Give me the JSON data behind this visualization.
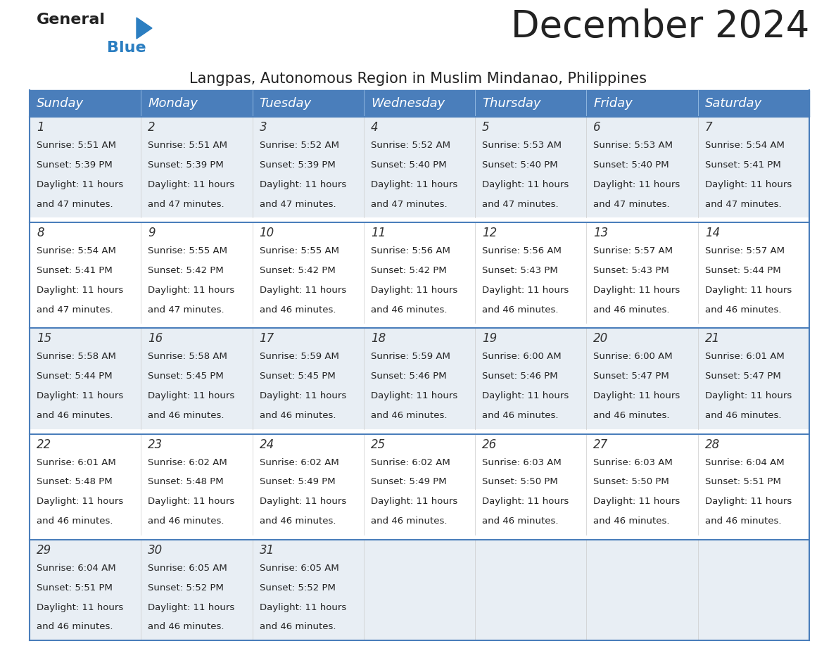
{
  "title": "December 2024",
  "subtitle": "Langpas, Autonomous Region in Muslim Mindanao, Philippines",
  "header_bg_color": "#4A7EBB",
  "header_text_color": "#FFFFFF",
  "row_bg_light": "#E8EEF4",
  "row_bg_white": "#FFFFFF",
  "border_color": "#4A7EBB",
  "cell_border_color": "#AAAAAA",
  "days_of_week": [
    "Sunday",
    "Monday",
    "Tuesday",
    "Wednesday",
    "Thursday",
    "Friday",
    "Saturday"
  ],
  "title_fontsize": 38,
  "subtitle_fontsize": 15,
  "header_fontsize": 13,
  "day_num_fontsize": 12,
  "cell_fontsize": 9.5,
  "calendar": [
    [
      {
        "day": "1",
        "sunrise": "5:51 AM",
        "sunset": "5:39 PM",
        "daylight_h": "11",
        "daylight_m": "47"
      },
      {
        "day": "2",
        "sunrise": "5:51 AM",
        "sunset": "5:39 PM",
        "daylight_h": "11",
        "daylight_m": "47"
      },
      {
        "day": "3",
        "sunrise": "5:52 AM",
        "sunset": "5:39 PM",
        "daylight_h": "11",
        "daylight_m": "47"
      },
      {
        "day": "4",
        "sunrise": "5:52 AM",
        "sunset": "5:40 PM",
        "daylight_h": "11",
        "daylight_m": "47"
      },
      {
        "day": "5",
        "sunrise": "5:53 AM",
        "sunset": "5:40 PM",
        "daylight_h": "11",
        "daylight_m": "47"
      },
      {
        "day": "6",
        "sunrise": "5:53 AM",
        "sunset": "5:40 PM",
        "daylight_h": "11",
        "daylight_m": "47"
      },
      {
        "day": "7",
        "sunrise": "5:54 AM",
        "sunset": "5:41 PM",
        "daylight_h": "11",
        "daylight_m": "47"
      }
    ],
    [
      {
        "day": "8",
        "sunrise": "5:54 AM",
        "sunset": "5:41 PM",
        "daylight_h": "11",
        "daylight_m": "47"
      },
      {
        "day": "9",
        "sunrise": "5:55 AM",
        "sunset": "5:42 PM",
        "daylight_h": "11",
        "daylight_m": "47"
      },
      {
        "day": "10",
        "sunrise": "5:55 AM",
        "sunset": "5:42 PM",
        "daylight_h": "11",
        "daylight_m": "46"
      },
      {
        "day": "11",
        "sunrise": "5:56 AM",
        "sunset": "5:42 PM",
        "daylight_h": "11",
        "daylight_m": "46"
      },
      {
        "day": "12",
        "sunrise": "5:56 AM",
        "sunset": "5:43 PM",
        "daylight_h": "11",
        "daylight_m": "46"
      },
      {
        "day": "13",
        "sunrise": "5:57 AM",
        "sunset": "5:43 PM",
        "daylight_h": "11",
        "daylight_m": "46"
      },
      {
        "day": "14",
        "sunrise": "5:57 AM",
        "sunset": "5:44 PM",
        "daylight_h": "11",
        "daylight_m": "46"
      }
    ],
    [
      {
        "day": "15",
        "sunrise": "5:58 AM",
        "sunset": "5:44 PM",
        "daylight_h": "11",
        "daylight_m": "46"
      },
      {
        "day": "16",
        "sunrise": "5:58 AM",
        "sunset": "5:45 PM",
        "daylight_h": "11",
        "daylight_m": "46"
      },
      {
        "day": "17",
        "sunrise": "5:59 AM",
        "sunset": "5:45 PM",
        "daylight_h": "11",
        "daylight_m": "46"
      },
      {
        "day": "18",
        "sunrise": "5:59 AM",
        "sunset": "5:46 PM",
        "daylight_h": "11",
        "daylight_m": "46"
      },
      {
        "day": "19",
        "sunrise": "6:00 AM",
        "sunset": "5:46 PM",
        "daylight_h": "11",
        "daylight_m": "46"
      },
      {
        "day": "20",
        "sunrise": "6:00 AM",
        "sunset": "5:47 PM",
        "daylight_h": "11",
        "daylight_m": "46"
      },
      {
        "day": "21",
        "sunrise": "6:01 AM",
        "sunset": "5:47 PM",
        "daylight_h": "11",
        "daylight_m": "46"
      }
    ],
    [
      {
        "day": "22",
        "sunrise": "6:01 AM",
        "sunset": "5:48 PM",
        "daylight_h": "11",
        "daylight_m": "46"
      },
      {
        "day": "23",
        "sunrise": "6:02 AM",
        "sunset": "5:48 PM",
        "daylight_h": "11",
        "daylight_m": "46"
      },
      {
        "day": "24",
        "sunrise": "6:02 AM",
        "sunset": "5:49 PM",
        "daylight_h": "11",
        "daylight_m": "46"
      },
      {
        "day": "25",
        "sunrise": "6:02 AM",
        "sunset": "5:49 PM",
        "daylight_h": "11",
        "daylight_m": "46"
      },
      {
        "day": "26",
        "sunrise": "6:03 AM",
        "sunset": "5:50 PM",
        "daylight_h": "11",
        "daylight_m": "46"
      },
      {
        "day": "27",
        "sunrise": "6:03 AM",
        "sunset": "5:50 PM",
        "daylight_h": "11",
        "daylight_m": "46"
      },
      {
        "day": "28",
        "sunrise": "6:04 AM",
        "sunset": "5:51 PM",
        "daylight_h": "11",
        "daylight_m": "46"
      }
    ],
    [
      {
        "day": "29",
        "sunrise": "6:04 AM",
        "sunset": "5:51 PM",
        "daylight_h": "11",
        "daylight_m": "46"
      },
      {
        "day": "30",
        "sunrise": "6:05 AM",
        "sunset": "5:52 PM",
        "daylight_h": "11",
        "daylight_m": "46"
      },
      {
        "day": "31",
        "sunrise": "6:05 AM",
        "sunset": "5:52 PM",
        "daylight_h": "11",
        "daylight_m": "46"
      },
      null,
      null,
      null,
      null
    ]
  ]
}
